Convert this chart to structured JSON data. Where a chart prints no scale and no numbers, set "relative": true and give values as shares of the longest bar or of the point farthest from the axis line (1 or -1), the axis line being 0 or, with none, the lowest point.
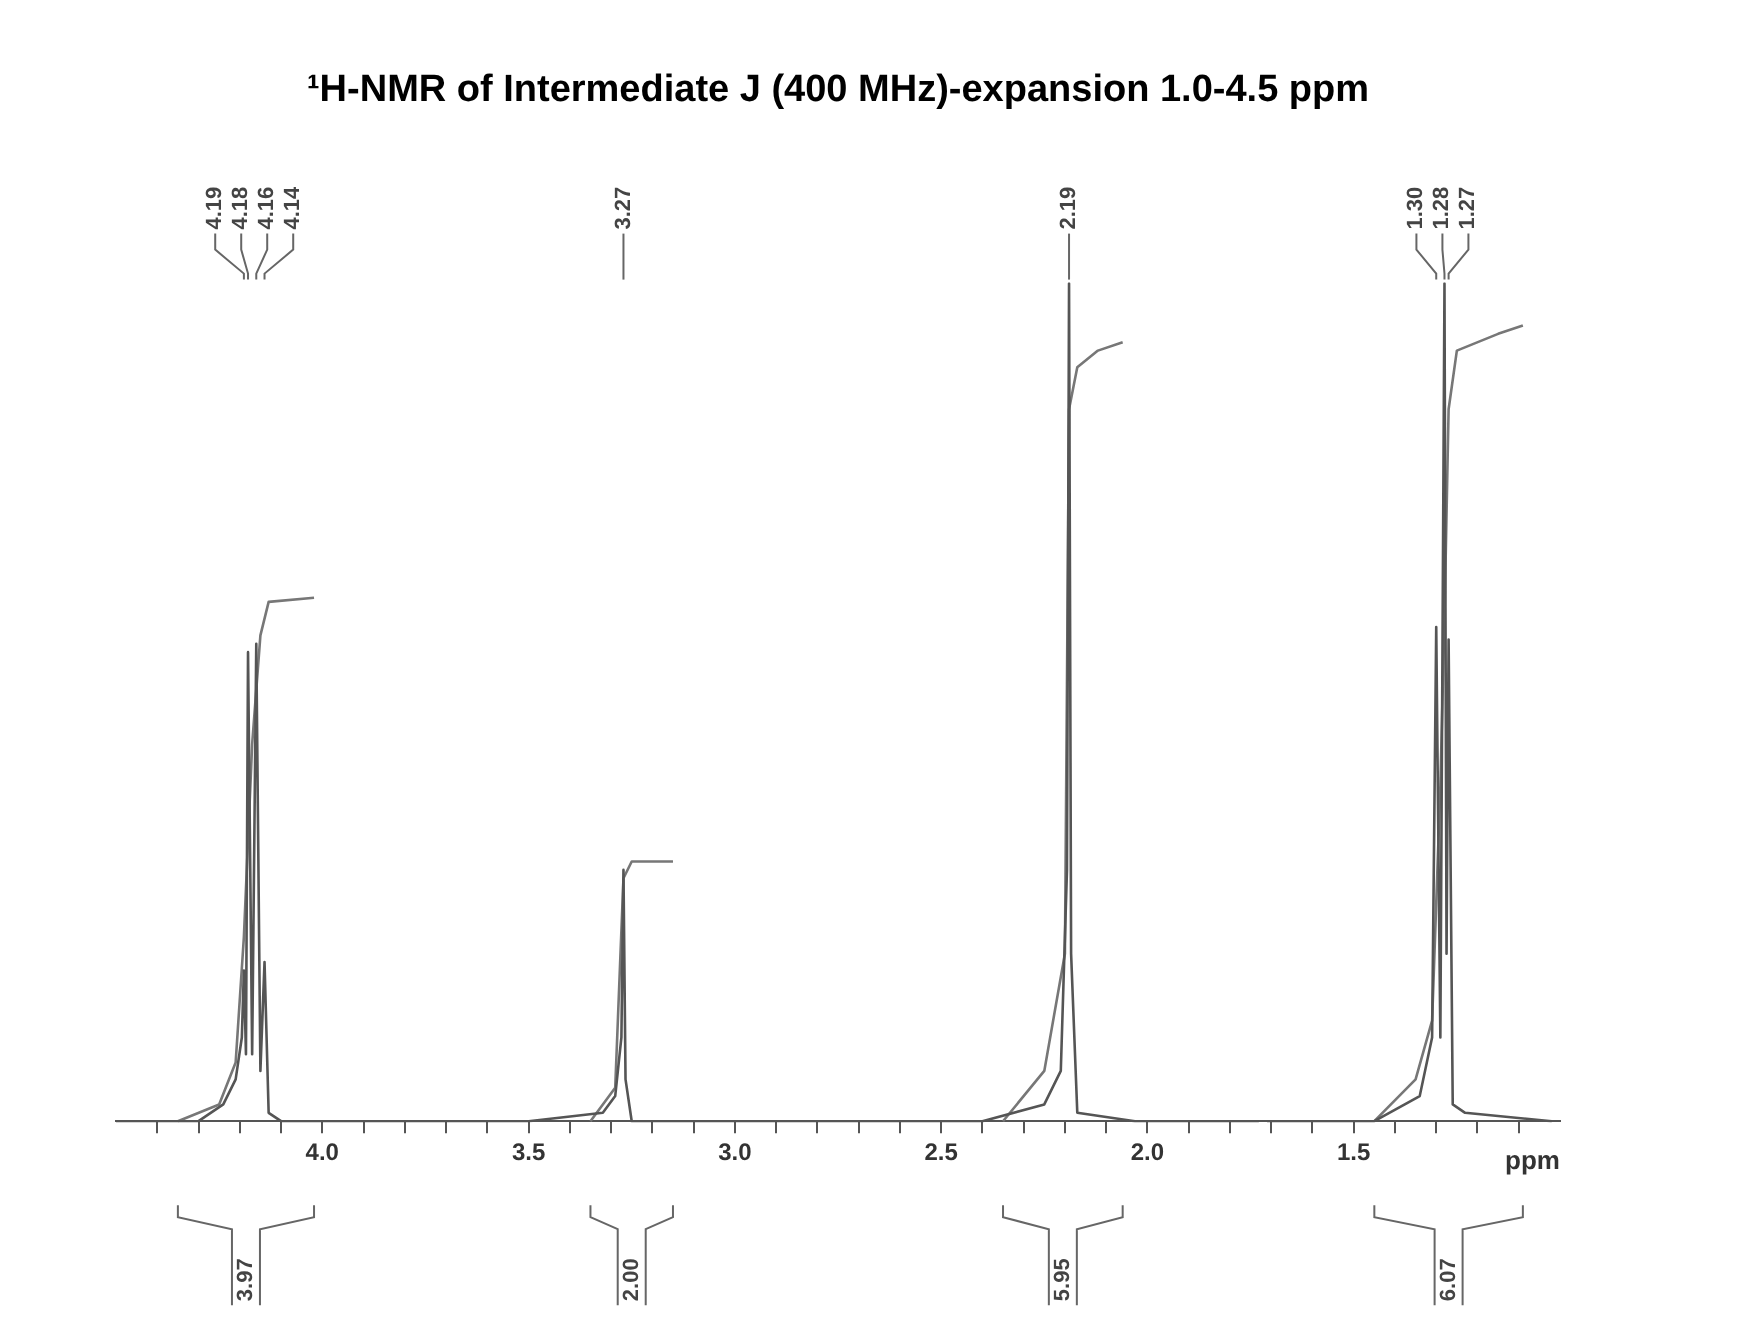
{
  "chart_data": {
    "type": "line",
    "title": "¹H-NMR of Intermediate J (400 MHz)-expansion 1.0-4.5 ppm",
    "xlabel": "ppm",
    "relative": true,
    "legend": false,
    "grid": false,
    "marker": "none",
    "line_style": "solid",
    "xlim": [
      4.5,
      1.0
    ],
    "xticks": [
      {
        "value": 4.4,
        "label": null
      },
      {
        "value": 4.3,
        "label": null
      },
      {
        "value": 4.2,
        "label": null
      },
      {
        "value": 4.1,
        "label": null
      },
      {
        "value": 4.0,
        "label": "4.0"
      },
      {
        "value": 3.9,
        "label": null
      },
      {
        "value": 3.8,
        "label": null
      },
      {
        "value": 3.7,
        "label": null
      },
      {
        "value": 3.6,
        "label": null
      },
      {
        "value": 3.5,
        "label": "3.5"
      },
      {
        "value": 3.4,
        "label": null
      },
      {
        "value": 3.3,
        "label": null
      },
      {
        "value": 3.2,
        "label": null
      },
      {
        "value": 3.1,
        "label": null
      },
      {
        "value": 3.0,
        "label": "3.0"
      },
      {
        "value": 2.9,
        "label": null
      },
      {
        "value": 2.8,
        "label": null
      },
      {
        "value": 2.7,
        "label": null
      },
      {
        "value": 2.6,
        "label": null
      },
      {
        "value": 2.5,
        "label": "2.5"
      },
      {
        "value": 2.4,
        "label": null
      },
      {
        "value": 2.3,
        "label": null
      },
      {
        "value": 2.2,
        "label": null
      },
      {
        "value": 2.1,
        "label": null
      },
      {
        "value": 2.0,
        "label": "2.0"
      },
      {
        "value": 1.9,
        "label": null
      },
      {
        "value": 1.8,
        "label": null
      },
      {
        "value": 1.7,
        "label": null
      },
      {
        "value": 1.6,
        "label": null
      },
      {
        "value": 1.5,
        "label": "1.5"
      },
      {
        "value": 1.4,
        "label": null
      },
      {
        "value": 1.3,
        "label": null
      },
      {
        "value": 1.2,
        "label": null
      },
      {
        "value": 1.1,
        "label": null
      }
    ],
    "series": [
      {
        "color": "#555555",
        "x": [
          4.5,
          4.3,
          4.24,
          4.21,
          4.195,
          4.19,
          4.185,
          4.18,
          4.17,
          4.16,
          4.15,
          4.14,
          4.13,
          4.1,
          3.5,
          3.32,
          3.29,
          3.275,
          3.27,
          3.265,
          3.25,
          3.2,
          2.85,
          2.84,
          2.83,
          2.4,
          2.25,
          2.21,
          2.195,
          2.19,
          2.185,
          2.17,
          2.03,
          1.73,
          1.72,
          1.71,
          1.45,
          1.34,
          1.31,
          1.3,
          1.29,
          1.28,
          1.275,
          1.27,
          1.26,
          1.23,
          1.02
        ],
        "values": [
          0,
          0,
          0.02,
          0.05,
          0.1,
          0.18,
          0.08,
          0.56,
          0.08,
          0.57,
          0.06,
          0.19,
          0.01,
          0,
          0,
          0.01,
          0.03,
          0.1,
          0.3,
          0.05,
          0,
          0,
          0,
          0,
          0,
          0,
          0.02,
          0.06,
          0.3,
          1.0,
          0.2,
          0.01,
          0,
          0,
          null,
          0,
          0,
          0.03,
          0.1,
          0.59,
          0.1,
          1.0,
          0.2,
          0.575,
          0.02,
          0.01,
          0
        ]
      },
      {
        "color": "#777777",
        "x": [
          4.35,
          4.25,
          4.21,
          4.19,
          4.17,
          4.15,
          4.13,
          4.02,
          3.8,
          3.35,
          3.29,
          3.27,
          3.25,
          3.15,
          2.6,
          2.35,
          2.25,
          2.2,
          2.19,
          2.17,
          2.12,
          2.06,
          1.6,
          1.45,
          1.35,
          1.31,
          1.29,
          1.28,
          1.27,
          1.25,
          1.15,
          1.09
        ],
        "values": [
          0,
          0.02,
          0.07,
          0.22,
          0.45,
          0.58,
          0.62,
          0.625,
          null,
          0,
          0.04,
          0.29,
          0.31,
          0.31,
          null,
          0,
          0.06,
          0.2,
          0.85,
          0.9,
          0.92,
          0.93,
          null,
          0,
          0.05,
          0.12,
          0.4,
          0.6,
          0.85,
          0.92,
          0.94,
          0.95
        ]
      }
    ],
    "annotations": [
      "4.19",
      "4.18",
      "4.16",
      "4.14",
      "3.27",
      "2.19",
      "1.30",
      "1.28",
      "1.27",
      "3.97",
      "2.00",
      "5.95",
      "6.07"
    ]
  }
}
